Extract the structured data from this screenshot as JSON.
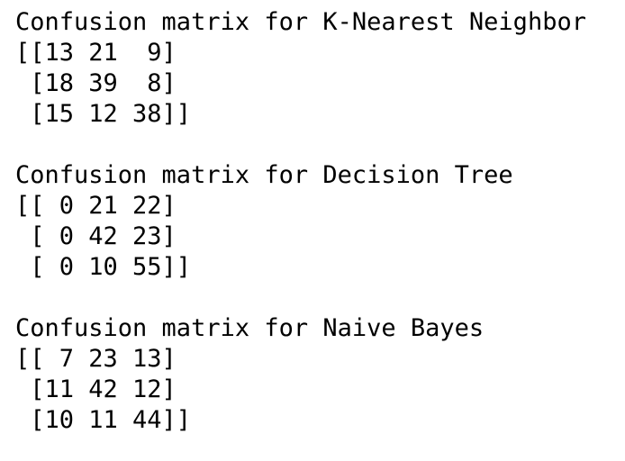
{
  "console": {
    "blocks": [
      {
        "title": "Confusion matrix for K-Nearest Neighbor",
        "rows": [
          "[[13 21  9]",
          " [18 39  8]",
          " [15 12 38]]"
        ]
      },
      {
        "title": "Confusion matrix for Decision Tree",
        "rows": [
          "[[ 0 21 22]",
          " [ 0 42 23]",
          " [ 0 10 55]]"
        ]
      },
      {
        "title": "Confusion matrix for Naive Bayes",
        "rows": [
          "[[ 7 23 13]",
          " [11 42 12]",
          " [10 11 44]]"
        ]
      }
    ]
  }
}
